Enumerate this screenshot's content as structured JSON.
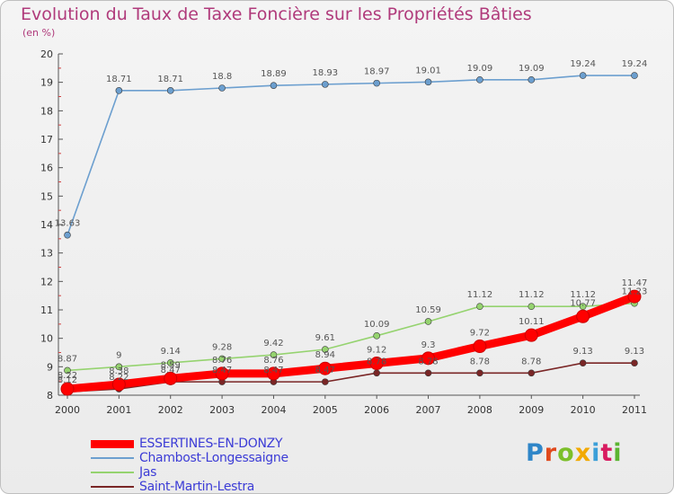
{
  "title": "Evolution du Taux de Taxe Foncière sur les Propriétés Bâties",
  "unit_label": "(en %)",
  "logo": {
    "text": "Proxiti",
    "letter_colors": [
      "#2f86c8",
      "#e04a1d",
      "#7cbf2a",
      "#f2a900",
      "#3b9fd8",
      "#d81b60",
      "#5bb431"
    ]
  },
  "chart_data": {
    "type": "line",
    "title": "Evolution du Taux de Taxe Foncière sur les Propriétés Bâties",
    "ylabel": "(en %)",
    "xlabel": "",
    "x": [
      "2000",
      "2001",
      "2002",
      "2003",
      "2004",
      "2005",
      "2006",
      "2007",
      "2008",
      "2009",
      "2010",
      "2011"
    ],
    "ylim": [
      8,
      20
    ],
    "yticks": [
      "8",
      "9",
      "10",
      "11",
      "12",
      "13",
      "14",
      "15",
      "16",
      "17",
      "18",
      "19",
      "20"
    ],
    "grid": false,
    "legend_position": "bottom-left",
    "series": [
      {
        "name": "Saint-Martin-Lestra",
        "color": "#7a2626",
        "values": [
          8.12,
          8.22,
          8.47,
          8.47,
          8.47,
          8.47,
          8.78,
          8.78,
          8.78,
          8.78,
          9.13,
          9.13
        ],
        "labels": [
          "8.12",
          "8.22",
          "8.47",
          "8.47",
          "8.47",
          "8.47",
          "8.78",
          "8.78",
          "8.78",
          "8.78",
          "9.13",
          "9.13"
        ]
      },
      {
        "name": "Jas",
        "color": "#95d36f",
        "values": [
          8.87,
          9.0,
          9.14,
          9.28,
          9.42,
          9.61,
          10.09,
          10.59,
          11.12,
          11.12,
          11.12,
          11.23
        ],
        "labels": [
          "8.87",
          "9",
          "9.14",
          "9.28",
          "9.42",
          "9.61",
          "10.09",
          "10.59",
          "11.12",
          "11.12",
          "11.12",
          "11.23"
        ]
      },
      {
        "name": "Chambost-Longessaigne",
        "color": "#6c9fcf",
        "values": [
          13.63,
          18.71,
          18.71,
          18.8,
          18.89,
          18.93,
          18.97,
          19.01,
          19.09,
          19.09,
          19.24,
          19.24
        ],
        "labels": [
          "13.63",
          "18.71",
          "18.71",
          "18.8",
          "18.89",
          "18.93",
          "18.97",
          "19.01",
          "19.09",
          "19.09",
          "19.24",
          "19.24"
        ]
      },
      {
        "name": "ESSERTINES-EN-DONZY",
        "color": "#ff0000",
        "values": [
          8.22,
          8.38,
          8.59,
          8.76,
          8.76,
          8.94,
          9.12,
          9.3,
          9.72,
          10.11,
          10.77,
          11.47
        ],
        "labels": [
          "8.22",
          "8.38",
          "8.59",
          "8.76",
          "8.76",
          "8.94",
          "9.12",
          "9.3",
          "9.72",
          "10.11",
          "10.77",
          "11.47"
        ]
      }
    ]
  },
  "legend": [
    {
      "name": "ESSERTINES-EN-DONZY",
      "color": "#ff0000",
      "text_color": "#3c3cd6",
      "thick": true
    },
    {
      "name": "Chambost-Longessaigne",
      "color": "#6c9fcf",
      "text_color": "#3c3cd6",
      "thick": false
    },
    {
      "name": "Jas",
      "color": "#95d36f",
      "text_color": "#3c3cd6",
      "thick": false
    },
    {
      "name": "Saint-Martin-Lestra",
      "color": "#7a2626",
      "text_color": "#3c3cd6",
      "thick": false
    }
  ]
}
